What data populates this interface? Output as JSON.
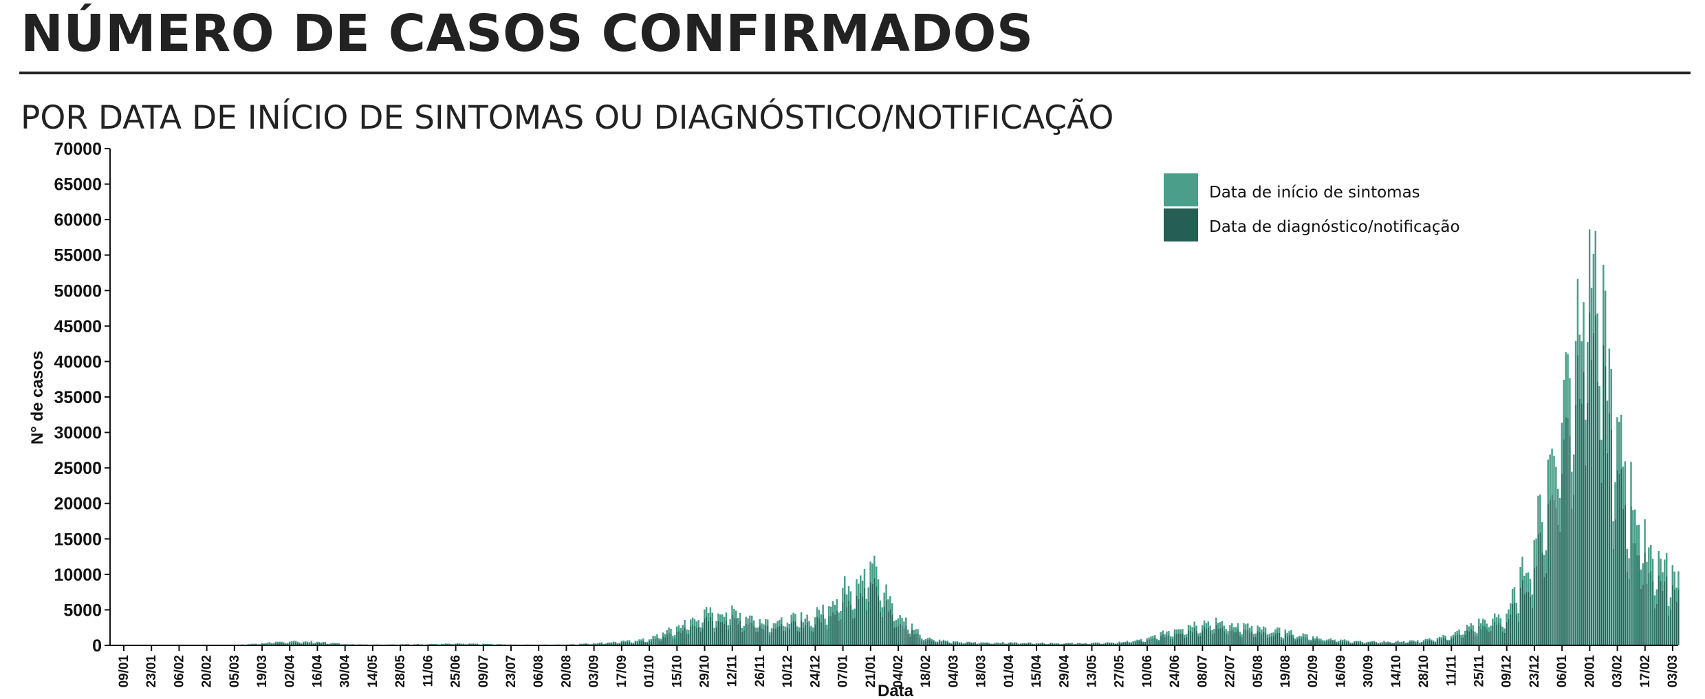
{
  "header": {
    "title": "NÚMERO DE CASOS CONFIRMADOS",
    "subtitle": "POR DATA DE INÍCIO DE SINTOMAS OU DIAGNÓSTICO/NOTIFICAÇÃO"
  },
  "colors": {
    "symptom_onset": "#4a9e8a",
    "diagnosis": "#245e54",
    "axis": "#111111"
  },
  "chart_data": {
    "type": "bar",
    "stacked": true,
    "xlabel": "Data",
    "ylabel": "N° de casos",
    "ylim": [
      0,
      70000
    ],
    "yticks": [
      0,
      5000,
      10000,
      15000,
      20000,
      25000,
      30000,
      35000,
      40000,
      45000,
      50000,
      55000,
      60000,
      65000,
      70000
    ],
    "x_tick_labels": [
      "09/01",
      "23/01",
      "06/02",
      "20/02",
      "05/03",
      "19/03",
      "02/04",
      "16/04",
      "30/04",
      "14/05",
      "28/05",
      "11/06",
      "25/06",
      "09/07",
      "23/07",
      "06/08",
      "20/08",
      "03/09",
      "17/09",
      "01/10",
      "15/10",
      "29/10",
      "12/11",
      "26/11",
      "10/12",
      "24/12",
      "07/01",
      "21/01",
      "04/02",
      "18/02",
      "04/03",
      "18/03",
      "01/04",
      "15/04",
      "29/04",
      "13/05",
      "27/05",
      "10/06",
      "24/06",
      "08/07",
      "22/07",
      "05/08",
      "19/08",
      "02/09",
      "16/09",
      "30/09",
      "14/10",
      "28/10",
      "11/11",
      "25/11",
      "09/12",
      "23/12",
      "06/01",
      "20/01",
      "03/02",
      "17/02",
      "03/03"
    ],
    "x_tick_interval_days": 14,
    "legend": {
      "position": "top-right",
      "entries": [
        "Data de início de sintomas",
        "Data de diagnóstico/notificação"
      ]
    },
    "series": [
      {
        "name": "Data de início de sintomas",
        "color": "#4a9e8a",
        "values_at_ticks": [
          0,
          0,
          0,
          0,
          30,
          300,
          600,
          500,
          200,
          120,
          150,
          180,
          250,
          200,
          120,
          100,
          120,
          300,
          550,
          900,
          2600,
          4600,
          5000,
          3700,
          3700,
          4300,
          8000,
          12000,
          4500,
          1100,
          500,
          400,
          400,
          350,
          300,
          320,
          450,
          900,
          2400,
          3400,
          3200,
          2400,
          2000,
          1200,
          800,
          550,
          550,
          700,
          1500,
          3300,
          4500,
          15000,
          35000,
          60000,
          30000,
          15000,
          10000
        ]
      },
      {
        "name": "Data de diagnóstico/notificação",
        "color": "#245e54",
        "values_at_ticks": [
          0,
          0,
          0,
          0,
          10,
          150,
          350,
          300,
          120,
          80,
          100,
          100,
          150,
          120,
          80,
          60,
          80,
          200,
          350,
          600,
          1800,
          3400,
          3800,
          2800,
          2800,
          3200,
          6000,
          9000,
          3200,
          800,
          350,
          280,
          280,
          250,
          220,
          240,
          330,
          650,
          1700,
          2500,
          2300,
          1700,
          1400,
          850,
          550,
          400,
          400,
          500,
          1100,
          2400,
          3300,
          11000,
          27000,
          48000,
          23000,
          11000,
          7500
        ]
      }
    ]
  }
}
